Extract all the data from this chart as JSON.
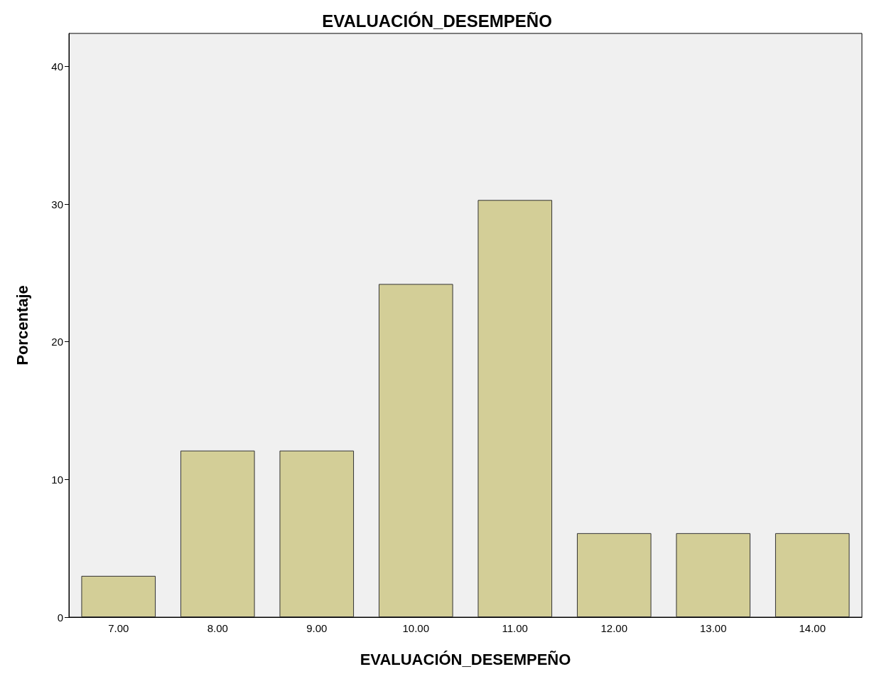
{
  "chart_data": {
    "type": "bar",
    "title": "EVALUACIÓN_DESEMPEÑO",
    "xlabel": "EVALUACIÓN_DESEMPEÑO",
    "ylabel": "Porcentaje",
    "categories": [
      "7.00",
      "8.00",
      "9.00",
      "10.00",
      "11.00",
      "12.00",
      "13.00",
      "14.00"
    ],
    "values": [
      3.0,
      12.1,
      12.1,
      24.2,
      30.3,
      6.1,
      6.1,
      6.1
    ],
    "color": "#d3ce97",
    "ylim": [
      0,
      42.4
    ],
    "yticks": [
      0,
      10,
      20,
      30,
      40
    ],
    "grid": false
  }
}
